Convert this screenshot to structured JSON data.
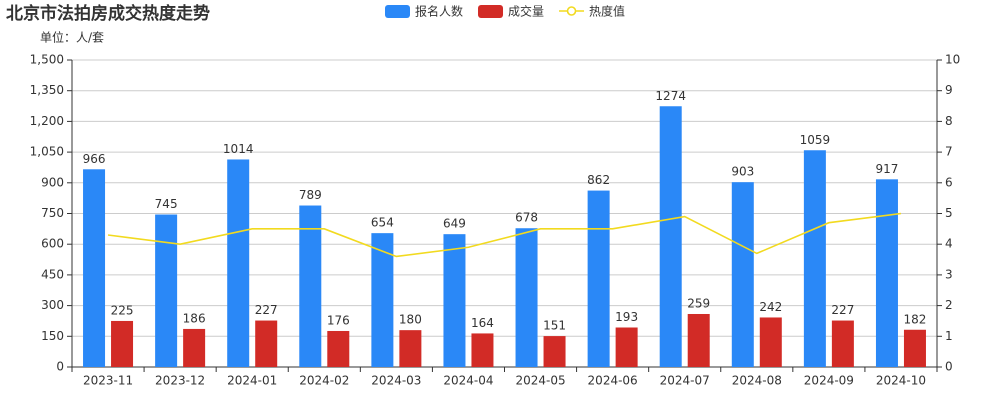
{
  "chart_data": {
    "type": "bar",
    "title": "北京市法拍房成交热度走势",
    "subtitle": "单位：人/套",
    "categories": [
      "2023-11",
      "2023-12",
      "2024-01",
      "2024-02",
      "2024-03",
      "2024-04",
      "2024-05",
      "2024-06",
      "2024-07",
      "2024-08",
      "2024-09",
      "2024-10"
    ],
    "series": [
      {
        "name": "报名人数",
        "color": "#2a88f7",
        "values": [
          966,
          745,
          1014,
          789,
          654,
          649,
          678,
          862,
          1274,
          903,
          1059,
          917
        ]
      },
      {
        "name": "成交量",
        "color": "#d22b26",
        "values": [
          225,
          186,
          227,
          176,
          180,
          164,
          151,
          193,
          259,
          242,
          227,
          182
        ]
      },
      {
        "name": "热度值",
        "color": "#f2da1f",
        "type": "line",
        "axis": "y2",
        "values": [
          4.3,
          4.0,
          4.5,
          4.5,
          3.6,
          3.9,
          4.5,
          4.5,
          4.9,
          3.7,
          4.7,
          5.0
        ]
      }
    ],
    "ylim": [
      0,
      1500
    ],
    "yticks": [
      0,
      150,
      300,
      450,
      600,
      750,
      900,
      {
        "value": 1050,
        "label": "1,050"
      },
      {
        "value": 1200,
        "label": "1,200"
      },
      {
        "value": 1350,
        "label": "1,350"
      },
      {
        "value": 1500,
        "label": "1,500"
      }
    ],
    "y2lim": [
      0,
      10
    ],
    "y2ticks": [
      0,
      1,
      2,
      3,
      4,
      5,
      6,
      7,
      8,
      9,
      10
    ],
    "grid": true
  }
}
